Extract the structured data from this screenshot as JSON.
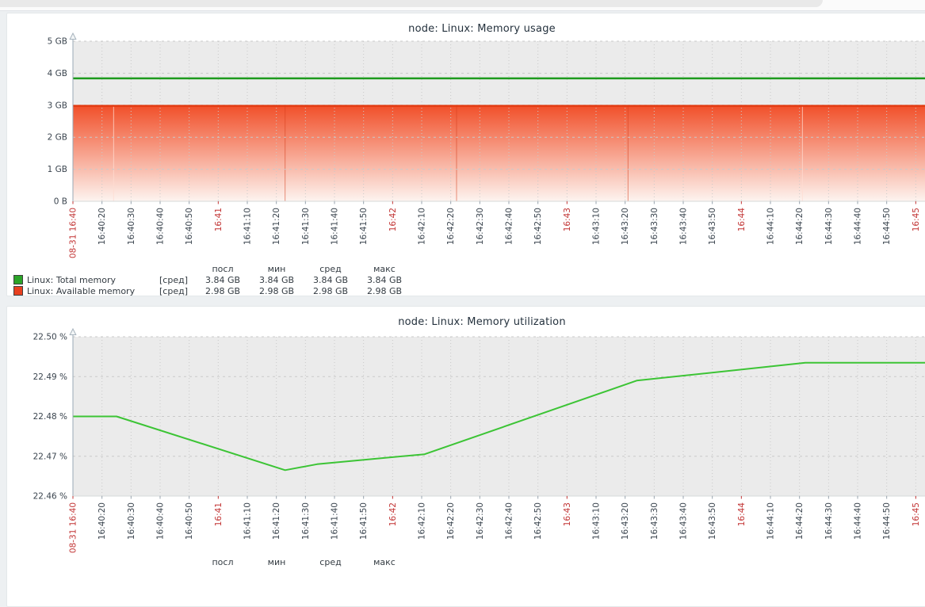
{
  "colors": {
    "page_background": "#edf0f2",
    "plot_background": "#ebebeb",
    "gridline": "#c9c9c9",
    "axis": "#9aa8b4",
    "tick_label": "#3a444e",
    "tick_label_red": "#c23434",
    "total_memory_line": "#1e9b1e",
    "available_memory_edge": "#e23a10",
    "available_memory_fill_top": "#f1502a",
    "available_memory_fill_bottom": "#fdf4f0",
    "utilization_line": "#3cc435"
  },
  "chart_data": [
    {
      "type": "area",
      "title": "node: Linux: Memory usage",
      "ylim": [
        0,
        5
      ],
      "y_unit": "GB",
      "grid": true,
      "legend_position": "bottom",
      "y_ticks": [
        {
          "label": "5 GB",
          "value": 5
        },
        {
          "label": "4 GB",
          "value": 4
        },
        {
          "label": "3 GB",
          "value": 3
        },
        {
          "label": "2 GB",
          "value": 2
        },
        {
          "label": "1 GB",
          "value": 1
        },
        {
          "label": "0 B",
          "value": 0
        }
      ],
      "x_start_time": "16:40:10",
      "x_seconds_per_tick": 10,
      "x_ticks": [
        {
          "label": "08-31 16:40",
          "red": true
        },
        {
          "label": "16:40:20"
        },
        {
          "label": "16:40:30"
        },
        {
          "label": "16:40:40"
        },
        {
          "label": "16:40:50"
        },
        {
          "label": "16:41",
          "red": true
        },
        {
          "label": "16:41:10"
        },
        {
          "label": "16:41:20"
        },
        {
          "label": "16:41:30"
        },
        {
          "label": "16:41:40"
        },
        {
          "label": "16:41:50"
        },
        {
          "label": "16:42",
          "red": true
        },
        {
          "label": "16:42:10"
        },
        {
          "label": "16:42:20"
        },
        {
          "label": "16:42:30"
        },
        {
          "label": "16:42:40"
        },
        {
          "label": "16:42:50"
        },
        {
          "label": "16:43",
          "red": true
        },
        {
          "label": "16:43:10"
        },
        {
          "label": "16:43:20"
        },
        {
          "label": "16:43:30"
        },
        {
          "label": "16:43:40"
        },
        {
          "label": "16:43:50"
        },
        {
          "label": "16:44",
          "red": true
        },
        {
          "label": "16:44:10"
        },
        {
          "label": "16:44:20"
        },
        {
          "label": "16:44:30"
        },
        {
          "label": "16:44:40"
        },
        {
          "label": "16:44:50"
        },
        {
          "label": "16:45",
          "red": true
        }
      ],
      "series": [
        {
          "name": "Linux: Total memory",
          "kind": "constant-line",
          "value": 3.84,
          "color": "#1e9b1e",
          "width": 2.5
        },
        {
          "name": "Linux: Available memory",
          "kind": "constant-area",
          "value": 2.98,
          "edge_color": "#e23a10",
          "fill_top": "#f1502a",
          "fill_bottom": "#fdf4f0",
          "segment_boundaries": [
            {
              "time": "16:40:24",
              "light": true
            },
            {
              "time": "16:41:23"
            },
            {
              "time": "16:42:22"
            },
            {
              "time": "16:43:21"
            },
            {
              "time": "16:44:21",
              "light": true
            }
          ]
        }
      ],
      "legend": {
        "headers": [
          "посл",
          "мин",
          "сред",
          "макс"
        ],
        "rows": [
          {
            "swatch": "#2ba428",
            "label": "Linux: Total memory",
            "fn": "[сред]",
            "values": [
              "3.84 GB",
              "3.84 GB",
              "3.84 GB",
              "3.84 GB"
            ]
          },
          {
            "swatch": "#e8401f",
            "label": "Linux: Available memory",
            "fn": "[сред]",
            "values": [
              "2.98 GB",
              "2.98 GB",
              "2.98 GB",
              "2.98 GB"
            ]
          }
        ]
      }
    },
    {
      "type": "line",
      "title": "node: Linux: Memory utilization",
      "ylim": [
        22.46,
        22.5
      ],
      "y_unit": "%",
      "grid": true,
      "legend_position": "bottom",
      "y_ticks": [
        {
          "label": "22.50 %",
          "value": 22.5
        },
        {
          "label": "22.49 %",
          "value": 22.49
        },
        {
          "label": "22.48 %",
          "value": 22.48
        },
        {
          "label": "22.47 %",
          "value": 22.47
        },
        {
          "label": "22.46 %",
          "value": 22.46
        }
      ],
      "x_start_time": "16:40:10",
      "x_seconds_per_tick": 10,
      "x_ticks": [
        {
          "label": "08-31 16:40",
          "red": true
        },
        {
          "label": "16:40:20"
        },
        {
          "label": "16:40:30"
        },
        {
          "label": "16:40:40"
        },
        {
          "label": "16:40:50"
        },
        {
          "label": "16:41",
          "red": true
        },
        {
          "label": "16:41:10"
        },
        {
          "label": "16:41:20"
        },
        {
          "label": "16:41:30"
        },
        {
          "label": "16:41:40"
        },
        {
          "label": "16:41:50"
        },
        {
          "label": "16:42",
          "red": true
        },
        {
          "label": "16:42:10"
        },
        {
          "label": "16:42:20"
        },
        {
          "label": "16:42:30"
        },
        {
          "label": "16:42:40"
        },
        {
          "label": "16:42:50"
        },
        {
          "label": "16:43",
          "red": true
        },
        {
          "label": "16:43:10"
        },
        {
          "label": "16:43:20"
        },
        {
          "label": "16:43:30"
        },
        {
          "label": "16:43:40"
        },
        {
          "label": "16:43:50"
        },
        {
          "label": "16:44",
          "red": true
        },
        {
          "label": "16:44:10"
        },
        {
          "label": "16:44:20"
        },
        {
          "label": "16:44:30"
        },
        {
          "label": "16:44:40"
        },
        {
          "label": "16:44:50"
        },
        {
          "label": "16:45",
          "red": true
        }
      ],
      "series": [
        {
          "name": "Linux: Memory utilization",
          "kind": "line",
          "color": "#3cc435",
          "width": 2,
          "points": [
            [
              "16:40:10",
              22.48
            ],
            [
              "16:40:25",
              22.48
            ],
            [
              "16:41:23",
              22.4665
            ],
            [
              "16:41:34",
              22.468
            ],
            [
              "16:42:11",
              22.4705
            ],
            [
              "16:43:24",
              22.489
            ],
            [
              "16:44:22",
              22.4935
            ],
            [
              "16:45:28",
              22.4935
            ]
          ]
        }
      ],
      "legend": {
        "headers": [
          "посл",
          "мин",
          "сред",
          "макс"
        ],
        "rows": []
      }
    }
  ]
}
